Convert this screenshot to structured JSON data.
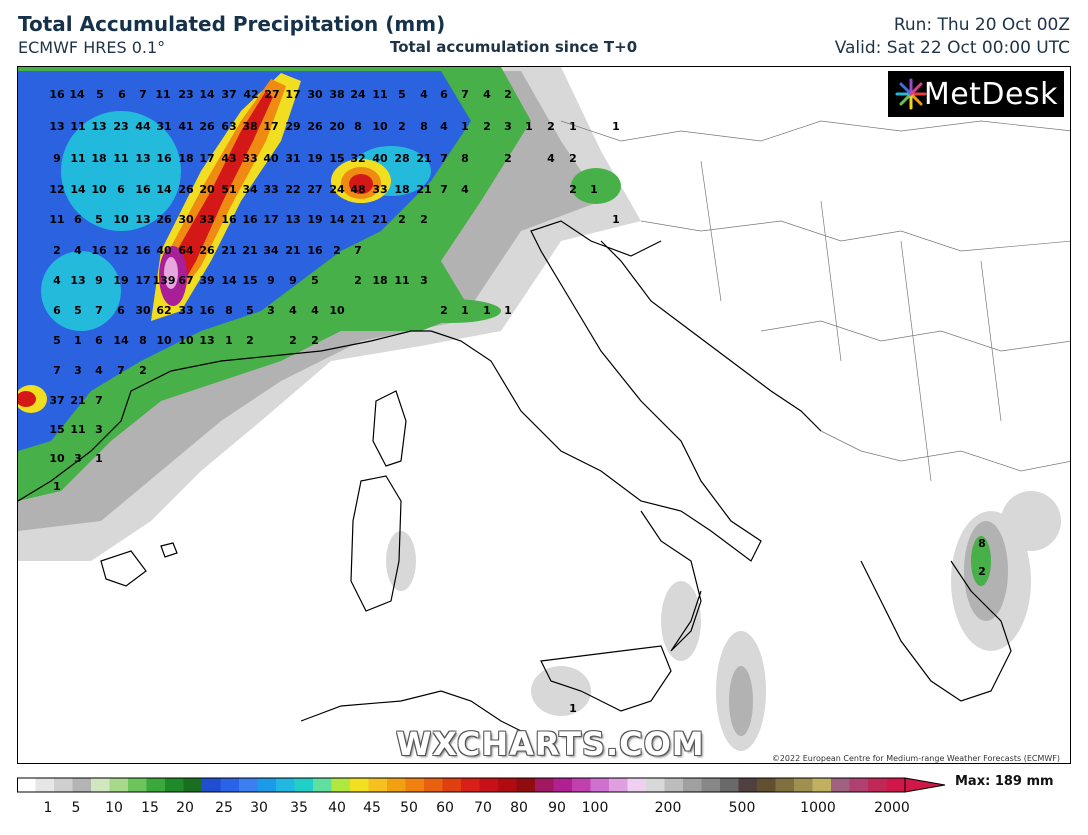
{
  "header": {
    "title": "Total Accumulated Precipitation (mm)",
    "model": "ECMWF HRES 0.1°",
    "accumulation": "Total accumulation since T+0",
    "run": "Run: Thu 20 Oct 00Z",
    "valid": "Valid: Sat 22 Oct 00:00 UTC"
  },
  "logo": {
    "text": "MetDesk",
    "icon": "metdesk-starburst-icon"
  },
  "watermark": "WXCHARTS.COM",
  "copyright": "©2022 European Centre for Medium-range Weather Forecasts (ECMWF)",
  "legend": {
    "max_label": "Max: 189 mm",
    "ticks": [
      "1",
      "5",
      "10",
      "15",
      "20",
      "25",
      "30",
      "35",
      "40",
      "45",
      "50",
      "60",
      "70",
      "80",
      "90",
      "100",
      "200",
      "500",
      "1000",
      "2000"
    ]
  },
  "map": {
    "region": "Western Mediterranean, Italy and the Balkans",
    "colors": {
      "light": "#d9d9d9",
      "grey": "#a8a8a8",
      "green_light": "#a6d98a",
      "green": "#3aa83a",
      "green_dark": "#1f7a1f",
      "blue": "#2a5fe0",
      "blue_dark": "#1632b0",
      "cyan": "#20c8e0",
      "yellow": "#f5e020",
      "orange": "#f08a10",
      "red": "#d81818",
      "darkred": "#8a1010",
      "magenta": "#b020a0",
      "pink": "#e8a8e0"
    },
    "labels": [
      [
        "16",
        56,
        97
      ],
      [
        "14",
        76,
        97
      ],
      [
        "5",
        99,
        97
      ],
      [
        "6",
        121,
        97
      ],
      [
        "7",
        142,
        97
      ],
      [
        "11",
        162,
        97
      ],
      [
        "23",
        185,
        97
      ],
      [
        "14",
        206,
        97
      ],
      [
        "37",
        228,
        97
      ],
      [
        "42",
        250,
        97
      ],
      [
        "27",
        271,
        97
      ],
      [
        "17",
        292,
        97
      ],
      [
        "30",
        314,
        97
      ],
      [
        "38",
        336,
        97
      ],
      [
        "24",
        357,
        97
      ],
      [
        "11",
        379,
        97
      ],
      [
        "5",
        401,
        97
      ],
      [
        "4",
        423,
        97
      ],
      [
        "6",
        443,
        97
      ],
      [
        "7",
        464,
        97
      ],
      [
        "4",
        486,
        97
      ],
      [
        "2",
        507,
        97
      ],
      [
        "13",
        56,
        129
      ],
      [
        "11",
        77,
        129
      ],
      [
        "13",
        98,
        129
      ],
      [
        "23",
        120,
        129
      ],
      [
        "44",
        142,
        129
      ],
      [
        "31",
        163,
        129
      ],
      [
        "41",
        185,
        129
      ],
      [
        "26",
        206,
        129
      ],
      [
        "63",
        228,
        129
      ],
      [
        "38",
        249,
        129
      ],
      [
        "17",
        270,
        129
      ],
      [
        "29",
        292,
        129
      ],
      [
        "26",
        314,
        129
      ],
      [
        "20",
        336,
        129
      ],
      [
        "8",
        357,
        129
      ],
      [
        "10",
        379,
        129
      ],
      [
        "2",
        401,
        129
      ],
      [
        "8",
        423,
        129
      ],
      [
        "4",
        443,
        129
      ],
      [
        "1",
        464,
        129
      ],
      [
        "2",
        486,
        129
      ],
      [
        "3",
        507,
        129
      ],
      [
        "1",
        528,
        129
      ],
      [
        "2",
        550,
        129
      ],
      [
        "1",
        572,
        129
      ],
      [
        "1",
        615,
        129
      ],
      [
        "9",
        56,
        161
      ],
      [
        "11",
        77,
        161
      ],
      [
        "18",
        98,
        161
      ],
      [
        "11",
        120,
        161
      ],
      [
        "13",
        142,
        161
      ],
      [
        "16",
        163,
        161
      ],
      [
        "18",
        185,
        161
      ],
      [
        "17",
        206,
        161
      ],
      [
        "43",
        228,
        161
      ],
      [
        "33",
        249,
        161
      ],
      [
        "40",
        270,
        161
      ],
      [
        "31",
        292,
        161
      ],
      [
        "19",
        314,
        161
      ],
      [
        "15",
        336,
        161
      ],
      [
        "32",
        357,
        161
      ],
      [
        "40",
        379,
        161
      ],
      [
        "28",
        401,
        161
      ],
      [
        "21",
        423,
        161
      ],
      [
        "7",
        443,
        161
      ],
      [
        "8",
        464,
        161
      ],
      [
        "2",
        507,
        161
      ],
      [
        "4",
        550,
        161
      ],
      [
        "2",
        572,
        161
      ],
      [
        "12",
        56,
        192
      ],
      [
        "14",
        77,
        192
      ],
      [
        "10",
        98,
        192
      ],
      [
        "6",
        120,
        192
      ],
      [
        "16",
        142,
        192
      ],
      [
        "14",
        163,
        192
      ],
      [
        "26",
        185,
        192
      ],
      [
        "20",
        206,
        192
      ],
      [
        "51",
        228,
        192
      ],
      [
        "34",
        249,
        192
      ],
      [
        "33",
        270,
        192
      ],
      [
        "22",
        292,
        192
      ],
      [
        "27",
        314,
        192
      ],
      [
        "24",
        336,
        192
      ],
      [
        "48",
        357,
        192
      ],
      [
        "33",
        379,
        192
      ],
      [
        "18",
        401,
        192
      ],
      [
        "21",
        423,
        192
      ],
      [
        "7",
        443,
        192
      ],
      [
        "4",
        464,
        192
      ],
      [
        "2",
        572,
        192
      ],
      [
        "1",
        593,
        192
      ],
      [
        "11",
        56,
        222
      ],
      [
        "6",
        77,
        222
      ],
      [
        "5",
        98,
        222
      ],
      [
        "10",
        120,
        222
      ],
      [
        "13",
        142,
        222
      ],
      [
        "26",
        163,
        222
      ],
      [
        "30",
        185,
        222
      ],
      [
        "33",
        206,
        222
      ],
      [
        "16",
        228,
        222
      ],
      [
        "16",
        249,
        222
      ],
      [
        "17",
        270,
        222
      ],
      [
        "13",
        292,
        222
      ],
      [
        "19",
        314,
        222
      ],
      [
        "14",
        336,
        222
      ],
      [
        "21",
        357,
        222
      ],
      [
        "21",
        379,
        222
      ],
      [
        "2",
        401,
        222
      ],
      [
        "2",
        423,
        222
      ],
      [
        "1",
        615,
        222
      ],
      [
        "2",
        56,
        253
      ],
      [
        "4",
        77,
        253
      ],
      [
        "16",
        98,
        253
      ],
      [
        "12",
        120,
        253
      ],
      [
        "16",
        142,
        253
      ],
      [
        "40",
        163,
        253
      ],
      [
        "64",
        185,
        253
      ],
      [
        "26",
        206,
        253
      ],
      [
        "21",
        228,
        253
      ],
      [
        "21",
        249,
        253
      ],
      [
        "34",
        270,
        253
      ],
      [
        "21",
        292,
        253
      ],
      [
        "16",
        314,
        253
      ],
      [
        "2",
        336,
        253
      ],
      [
        "7",
        357,
        253
      ],
      [
        "4",
        56,
        283
      ],
      [
        "13",
        77,
        283
      ],
      [
        "9",
        98,
        283
      ],
      [
        "19",
        120,
        283
      ],
      [
        "17",
        142,
        283
      ],
      [
        "139",
        163,
        283
      ],
      [
        "67",
        185,
        283
      ],
      [
        "39",
        206,
        283
      ],
      [
        "14",
        228,
        283
      ],
      [
        "15",
        249,
        283
      ],
      [
        "9",
        270,
        283
      ],
      [
        "9",
        292,
        283
      ],
      [
        "5",
        314,
        283
      ],
      [
        "2",
        357,
        283
      ],
      [
        "18",
        379,
        283
      ],
      [
        "11",
        401,
        283
      ],
      [
        "3",
        423,
        283
      ],
      [
        "6",
        56,
        313
      ],
      [
        "5",
        77,
        313
      ],
      [
        "7",
        98,
        313
      ],
      [
        "6",
        120,
        313
      ],
      [
        "30",
        142,
        313
      ],
      [
        "62",
        163,
        313
      ],
      [
        "33",
        185,
        313
      ],
      [
        "16",
        206,
        313
      ],
      [
        "8",
        228,
        313
      ],
      [
        "5",
        249,
        313
      ],
      [
        "3",
        270,
        313
      ],
      [
        "4",
        292,
        313
      ],
      [
        "4",
        314,
        313
      ],
      [
        "10",
        336,
        313
      ],
      [
        "2",
        443,
        313
      ],
      [
        "1",
        464,
        313
      ],
      [
        "1",
        486,
        313
      ],
      [
        "1",
        507,
        313
      ],
      [
        "5",
        56,
        343
      ],
      [
        "1",
        77,
        343
      ],
      [
        "6",
        98,
        343
      ],
      [
        "14",
        120,
        343
      ],
      [
        "8",
        142,
        343
      ],
      [
        "10",
        163,
        343
      ],
      [
        "10",
        185,
        343
      ],
      [
        "13",
        206,
        343
      ],
      [
        "1",
        228,
        343
      ],
      [
        "2",
        249,
        343
      ],
      [
        "2",
        292,
        343
      ],
      [
        "2",
        314,
        343
      ],
      [
        "7",
        56,
        373
      ],
      [
        "3",
        77,
        373
      ],
      [
        "4",
        98,
        373
      ],
      [
        "7",
        120,
        373
      ],
      [
        "2",
        142,
        373
      ],
      [
        "37",
        56,
        403
      ],
      [
        "21",
        77,
        403
      ],
      [
        "7",
        98,
        403
      ],
      [
        "15",
        56,
        432
      ],
      [
        "11",
        77,
        432
      ],
      [
        "3",
        98,
        432
      ],
      [
        "10",
        56,
        461
      ],
      [
        "3",
        77,
        461
      ],
      [
        "1",
        98,
        461
      ],
      [
        "1",
        56,
        489
      ],
      [
        "8",
        981,
        546
      ],
      [
        "2",
        981,
        574
      ],
      [
        "1",
        572,
        711
      ]
    ]
  }
}
